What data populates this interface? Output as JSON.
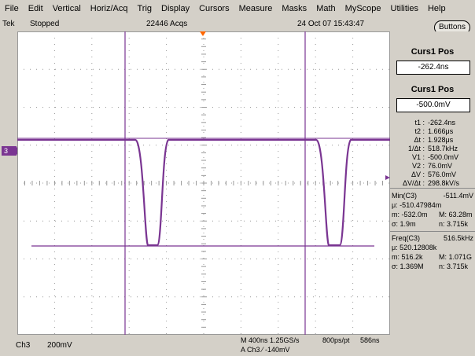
{
  "menu": [
    "File",
    "Edit",
    "Vertical",
    "Horiz/Acq",
    "Trig",
    "Display",
    "Cursors",
    "Measure",
    "Masks",
    "Math",
    "MyScope",
    "Utilities",
    "Help"
  ],
  "status": {
    "brand": "Tek",
    "state": "Stopped",
    "acqs": "22446 Acqs",
    "datetime": "24 Oct 07 15:43:47"
  },
  "buttons_label": "Buttons",
  "channel_marker": "3",
  "cursors": {
    "curs1_title": "Curs1 Pos",
    "curs1_value": "-262.4ns",
    "curs2_title": "Curs1 Pos",
    "curs2_value": "-500.0mV",
    "readout": [
      {
        "k": "t1 :",
        "v": "-262.4ns"
      },
      {
        "k": "t2 :",
        "v": "1.666μs"
      },
      {
        "k": "Δt :",
        "v": "1.928μs"
      },
      {
        "k": "1/Δt :",
        "v": "518.7kHz"
      },
      {
        "k": "V1 :",
        "v": "-500.0mV"
      },
      {
        "k": "V2 :",
        "v": "76.0mV"
      },
      {
        "k": "ΔV :",
        "v": "576.0mV"
      },
      {
        "k": "ΔV/Δt :",
        "v": "298.8kV/s"
      }
    ]
  },
  "meas_min": {
    "title": "Min(C3)",
    "value": "-511.4mV",
    "mean": "μ: -510.47984m",
    "m": "m: -532.0m",
    "M": "M: 63.28m",
    "sigma": "σ: 1.9m",
    "n": "n: 3.715k"
  },
  "meas_freq": {
    "title": "Freq(C3)",
    "value": "516.5kHz",
    "mean": "μ: 520.12808k",
    "m": "m: 516.2k",
    "M": "M: 1.071G",
    "sigma": "σ: 1.369M",
    "n": "n: 3.715k"
  },
  "bottom": {
    "ch": "Ch3",
    "scale": "200mV",
    "timebase": "M 400ns 1.25GS/s",
    "pts": "800ps/pt",
    "pos": "586ns",
    "trigger": "A  Ch3  ⁄  -140mV"
  },
  "colors": {
    "trace": "#7a3592",
    "grid": "#999999",
    "cursor": "#7a3592",
    "trigger_marker": "#ff6600"
  }
}
